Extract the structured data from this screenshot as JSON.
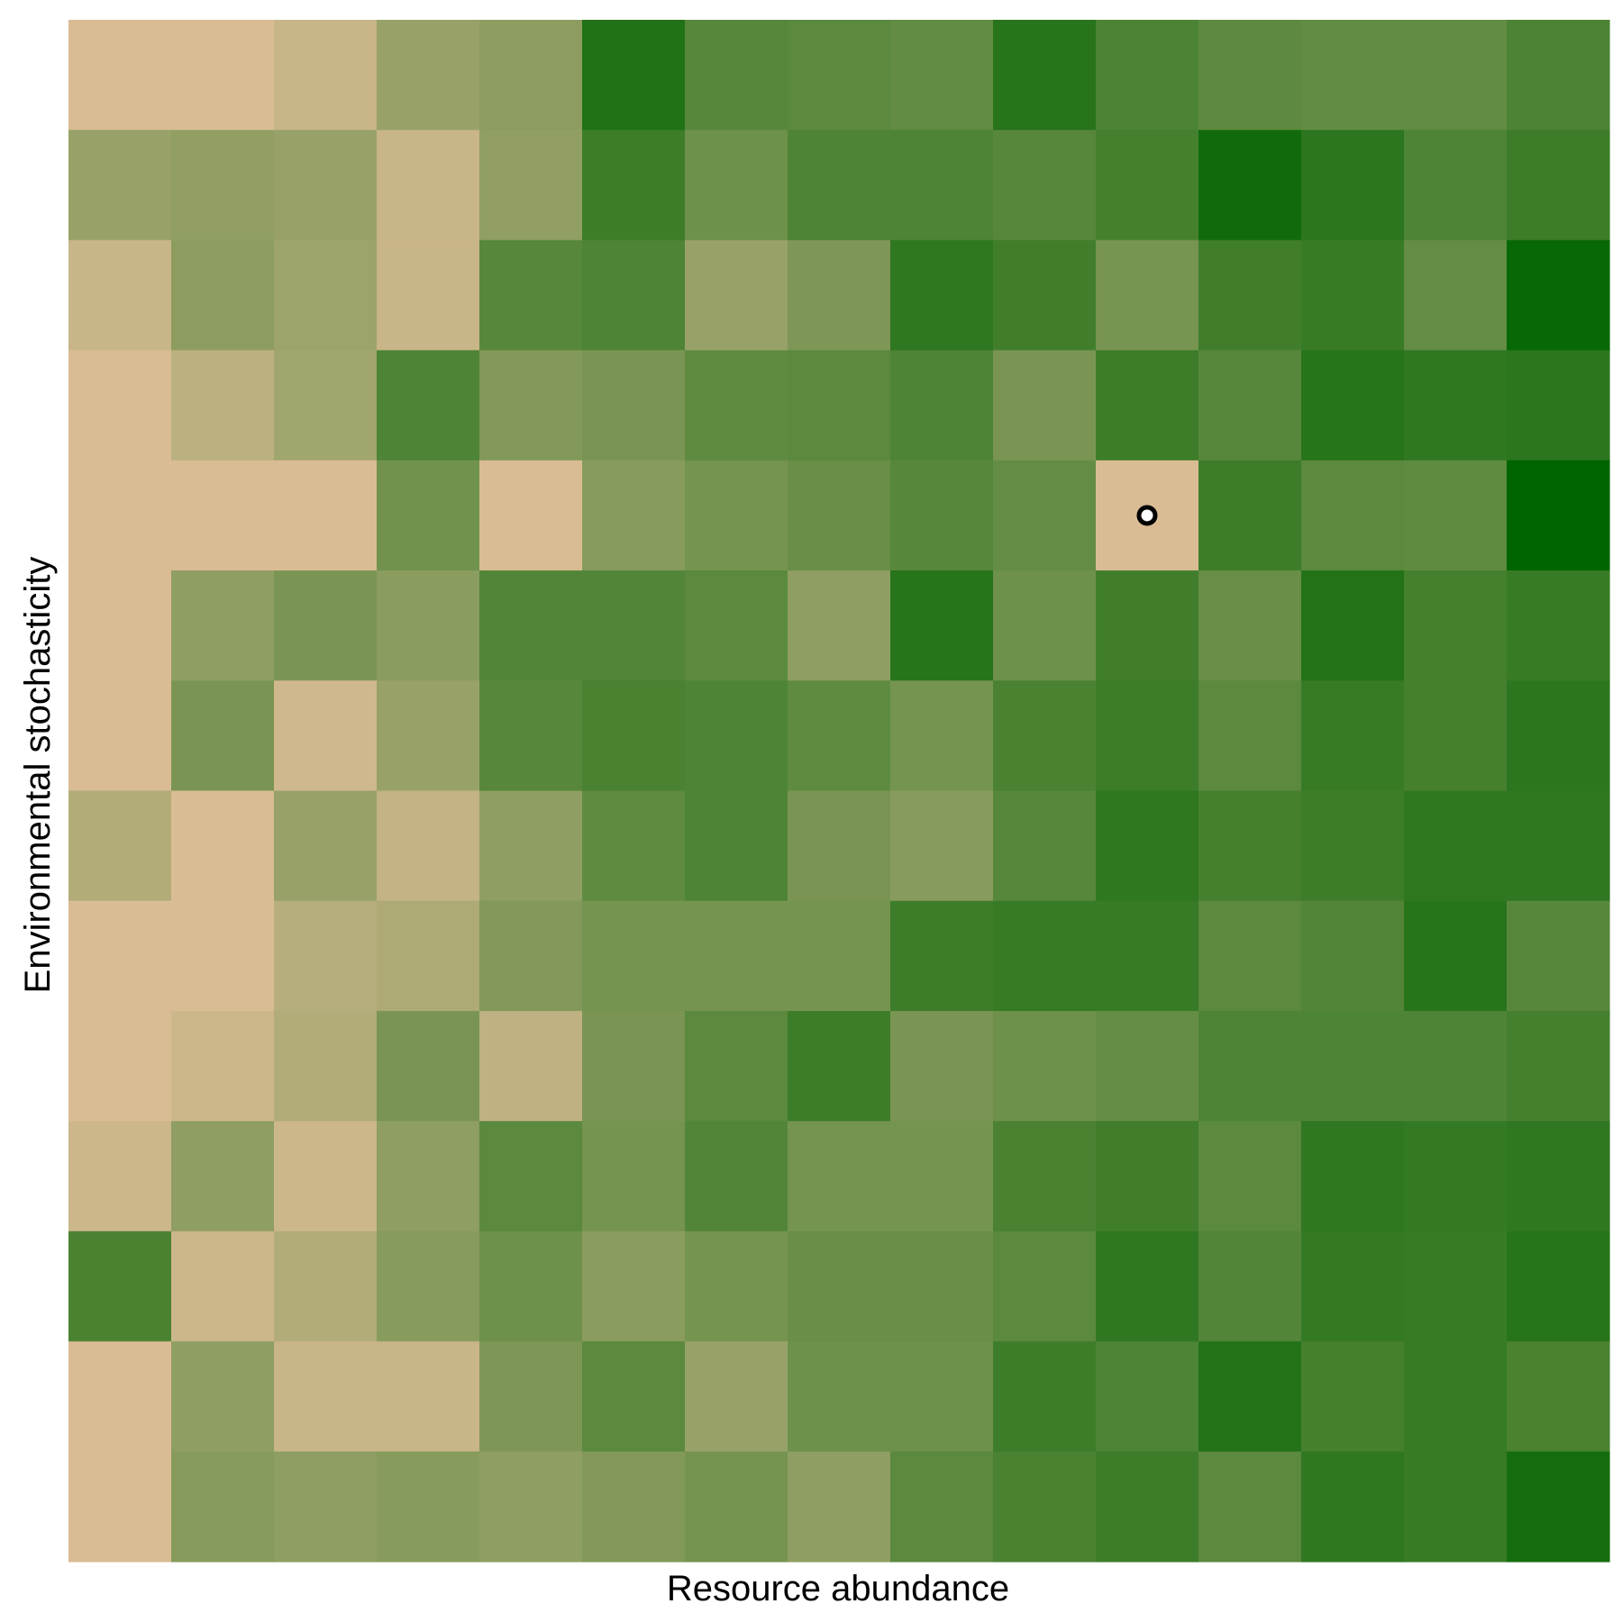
{
  "chart_data": {
    "type": "heatmap",
    "title": "",
    "xlabel": "Resource abundance",
    "ylabel": "Environmental stochasticity",
    "n_cols": 15,
    "n_rows": 14,
    "legend": "none",
    "grid": false,
    "color_scale": {
      "low": "#d9bc94",
      "high": "#006400"
    },
    "values": [
      [
        0.0,
        0.0,
        0.08,
        0.3,
        0.35,
        0.85,
        0.6,
        0.58,
        0.55,
        0.82,
        0.65,
        0.57,
        0.55,
        0.55,
        0.65
      ],
      [
        0.3,
        0.33,
        0.3,
        0.08,
        0.33,
        0.72,
        0.5,
        0.64,
        0.64,
        0.6,
        0.68,
        0.92,
        0.8,
        0.64,
        0.72
      ],
      [
        0.08,
        0.35,
        0.28,
        0.08,
        0.6,
        0.64,
        0.3,
        0.42,
        0.78,
        0.7,
        0.45,
        0.7,
        0.74,
        0.54,
        0.96
      ],
      [
        0.0,
        0.14,
        0.26,
        0.64,
        0.4,
        0.44,
        0.56,
        0.58,
        0.64,
        0.44,
        0.72,
        0.6,
        0.82,
        0.78,
        0.8
      ],
      [
        0.0,
        0.0,
        0.0,
        0.48,
        0.0,
        0.38,
        0.46,
        0.52,
        0.6,
        0.54,
        0.0,
        0.72,
        0.58,
        0.56,
        1.0
      ],
      [
        0.0,
        0.34,
        0.44,
        0.36,
        0.62,
        0.62,
        0.58,
        0.34,
        0.82,
        0.5,
        0.7,
        0.52,
        0.84,
        0.68,
        0.74
      ],
      [
        0.0,
        0.44,
        0.04,
        0.3,
        0.6,
        0.66,
        0.64,
        0.56,
        0.46,
        0.66,
        0.72,
        0.58,
        0.74,
        0.68,
        0.8
      ],
      [
        0.18,
        0.0,
        0.3,
        0.1,
        0.34,
        0.56,
        0.64,
        0.44,
        0.38,
        0.6,
        0.78,
        0.68,
        0.72,
        0.78,
        0.78
      ],
      [
        0.0,
        0.0,
        0.16,
        0.2,
        0.4,
        0.46,
        0.46,
        0.46,
        0.72,
        0.74,
        0.74,
        0.58,
        0.62,
        0.82,
        0.6
      ],
      [
        0.0,
        0.06,
        0.18,
        0.44,
        0.12,
        0.44,
        0.58,
        0.72,
        0.44,
        0.5,
        0.54,
        0.64,
        0.64,
        0.64,
        0.68
      ],
      [
        0.06,
        0.34,
        0.06,
        0.34,
        0.58,
        0.46,
        0.62,
        0.46,
        0.46,
        0.66,
        0.7,
        0.58,
        0.78,
        0.76,
        0.78
      ],
      [
        0.66,
        0.06,
        0.18,
        0.38,
        0.5,
        0.36,
        0.46,
        0.52,
        0.52,
        0.58,
        0.78,
        0.62,
        0.76,
        0.74,
        0.82
      ],
      [
        0.0,
        0.34,
        0.08,
        0.08,
        0.42,
        0.58,
        0.3,
        0.5,
        0.5,
        0.72,
        0.64,
        0.84,
        0.68,
        0.74,
        0.66
      ],
      [
        0.0,
        0.38,
        0.34,
        0.38,
        0.34,
        0.4,
        0.46,
        0.34,
        0.58,
        0.66,
        0.72,
        0.58,
        0.78,
        0.74,
        0.9
      ]
    ],
    "markers": [
      {
        "col": 10,
        "row": 4
      }
    ]
  }
}
